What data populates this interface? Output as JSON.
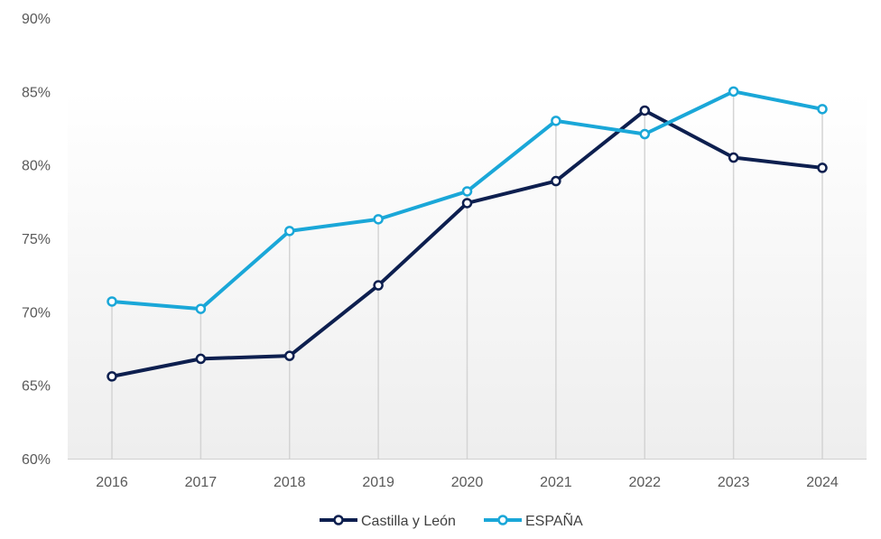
{
  "chart_data": {
    "type": "line",
    "title": "",
    "xlabel": "",
    "ylabel": "",
    "categories": [
      "2016",
      "2017",
      "2018",
      "2019",
      "2020",
      "2021",
      "2022",
      "2023",
      "2024"
    ],
    "ylim": [
      60,
      90
    ],
    "y_ticks": [
      60,
      65,
      70,
      75,
      80,
      85,
      90
    ],
    "y_tick_format": "{v}%",
    "grid": "vertical drop lines at each category",
    "legend_position": "bottom-center",
    "series": [
      {
        "name": "Castilla y León",
        "color": "#0d1f4f",
        "marker": "hollow-circle",
        "values": [
          65.6,
          66.8,
          67.0,
          71.8,
          77.4,
          78.9,
          83.7,
          80.5,
          79.8
        ]
      },
      {
        "name": "ESPAÑA",
        "color": "#1aa7d8",
        "marker": "hollow-circle",
        "values": [
          70.7,
          70.2,
          75.5,
          76.3,
          78.2,
          83.0,
          82.1,
          85.0,
          83.8
        ]
      }
    ]
  }
}
